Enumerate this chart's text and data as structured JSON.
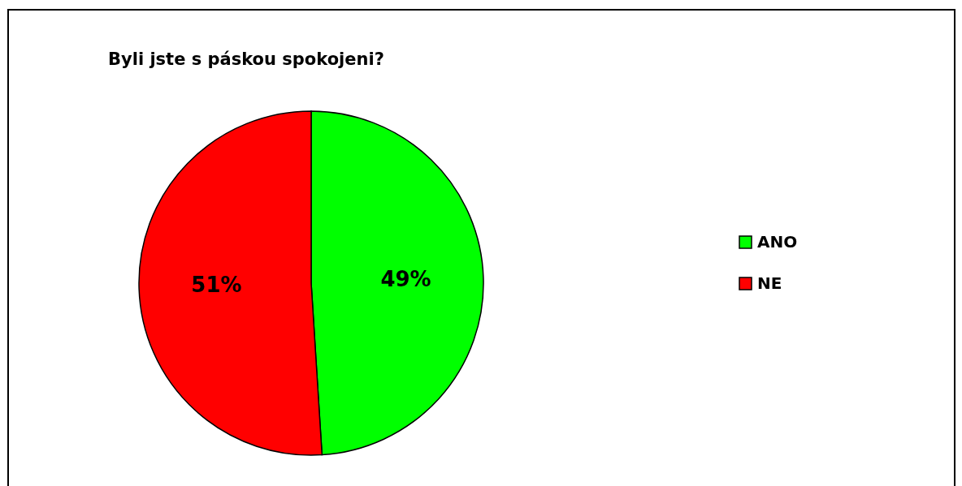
{
  "chart_data": {
    "type": "pie",
    "title": "Byli jste s páskou spokojeni?",
    "categories": [
      "ANO",
      "NE"
    ],
    "values": [
      49,
      51
    ],
    "colors": [
      "#00ff00",
      "#ff0000"
    ],
    "value_labels": [
      "49%",
      "51%"
    ],
    "legend": "right"
  }
}
